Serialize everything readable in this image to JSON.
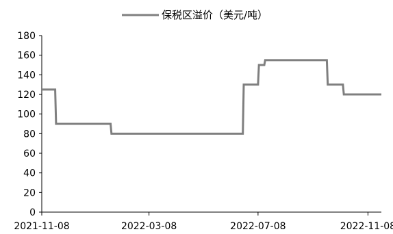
{
  "chart_data": {
    "type": "line",
    "title": "",
    "xlabel": "",
    "ylabel": "",
    "x_tick_labels": [
      "2021-11-08",
      "2022-03-08",
      "2022-07-08",
      "2022-11-08"
    ],
    "y_tick_labels": [
      "0",
      "20",
      "40",
      "60",
      "80",
      "100",
      "120",
      "140",
      "160",
      "180"
    ],
    "ylim": [
      0,
      180
    ],
    "xlim": [
      "2021-11-08",
      "2022-11-23"
    ],
    "grid": false,
    "legend_position": "top-center",
    "series": [
      {
        "name": "保税区溢价（美元/吨）",
        "color": "#7f7f7f",
        "points": [
          [
            "2021-11-08",
            125
          ],
          [
            "2021-11-23",
            125
          ],
          [
            "2021-11-24",
            90
          ],
          [
            "2022-01-24",
            90
          ],
          [
            "2022-01-25",
            80
          ],
          [
            "2022-06-21",
            80
          ],
          [
            "2022-06-22",
            130
          ],
          [
            "2022-07-08",
            130
          ],
          [
            "2022-07-09",
            150
          ],
          [
            "2022-07-15",
            150
          ],
          [
            "2022-07-16",
            155
          ],
          [
            "2022-09-23",
            155
          ],
          [
            "2022-09-24",
            130
          ],
          [
            "2022-10-11",
            130
          ],
          [
            "2022-10-12",
            120
          ],
          [
            "2022-11-23",
            120
          ]
        ]
      }
    ]
  }
}
